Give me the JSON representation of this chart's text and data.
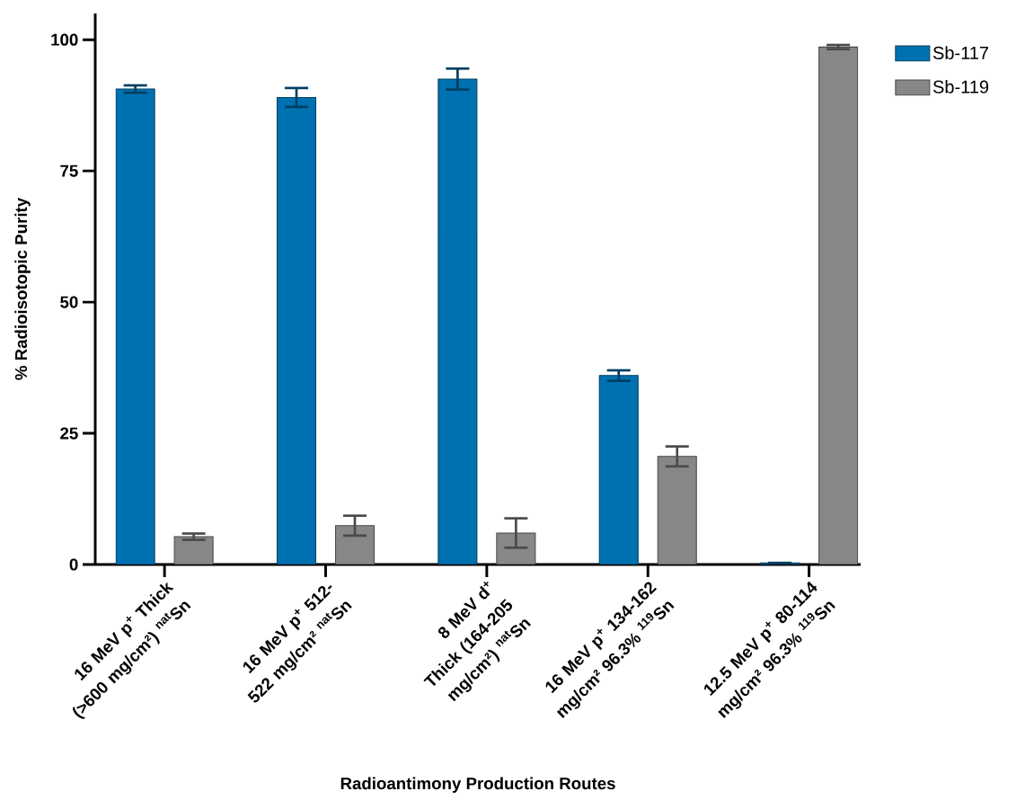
{
  "chart_data": {
    "type": "bar",
    "xlabel": "Radioantimony Production Routes",
    "ylabel": "% Radioisotopic Purity",
    "categories": [
      "16 MeV p$^{+}$ Thick (>600 mg/cm²) $^{nat}$Sn",
      "16 MeV p$^{+}$ 512-522 mg/cm² $^{nat}$Sn",
      "8 MeV d$^{+}$ Thick (164-205 mg/cm²) $^{nat}$Sn",
      "16 MeV p$^{+}$ 134-162 mg/cm² 96.3% $^{119}$Sn",
      "12.5 MeV p$^{+}$ 80-114 mg/cm² 96.3% $^{119}$Sn"
    ],
    "series": [
      {
        "name": "Sb-117",
        "color": "#0071b0",
        "values": [
          90.6,
          89.0,
          92.5,
          36.0,
          0.3
        ],
        "errors": [
          0.7,
          1.8,
          2.0,
          1.0,
          null
        ]
      },
      {
        "name": "Sb-119",
        "color": "#878787",
        "values": [
          5.3,
          7.4,
          6.0,
          20.6,
          98.6
        ],
        "errors": [
          0.6,
          1.9,
          2.8,
          1.9,
          0.4
        ]
      }
    ],
    "ylim": [
      0,
      105
    ],
    "yticks": [
      0,
      25,
      50,
      75,
      100
    ],
    "grid": false,
    "legend": "right"
  }
}
